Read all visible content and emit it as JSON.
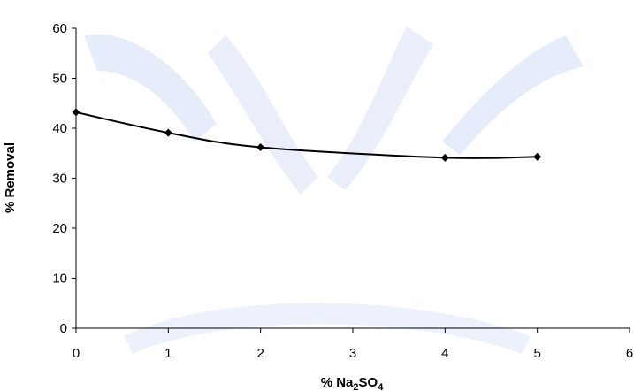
{
  "chart_data": {
    "type": "line",
    "title": "",
    "xlabel": {
      "prefix": "% Na",
      "sub1": "2",
      "mid": "SO",
      "sub2": "4"
    },
    "ylabel": "% Removal",
    "xlim": [
      0,
      6
    ],
    "ylim": [
      0,
      60
    ],
    "xticks": [
      "0",
      "1",
      "2",
      "3",
      "4",
      "5",
      "6"
    ],
    "yticks": [
      "0",
      "10",
      "20",
      "30",
      "40",
      "50",
      "60"
    ],
    "grid": false,
    "legend": "none",
    "series": [
      {
        "x": [
          0,
          1,
          2,
          4,
          5
        ],
        "y": [
          43.2,
          39.1,
          36.2,
          34.1,
          34.3
        ]
      }
    ],
    "colors": {
      "line": "#000000",
      "marker": "#000000",
      "axis": "#000000",
      "background": "#ffffff",
      "watermark": "#dbe4f7"
    }
  }
}
